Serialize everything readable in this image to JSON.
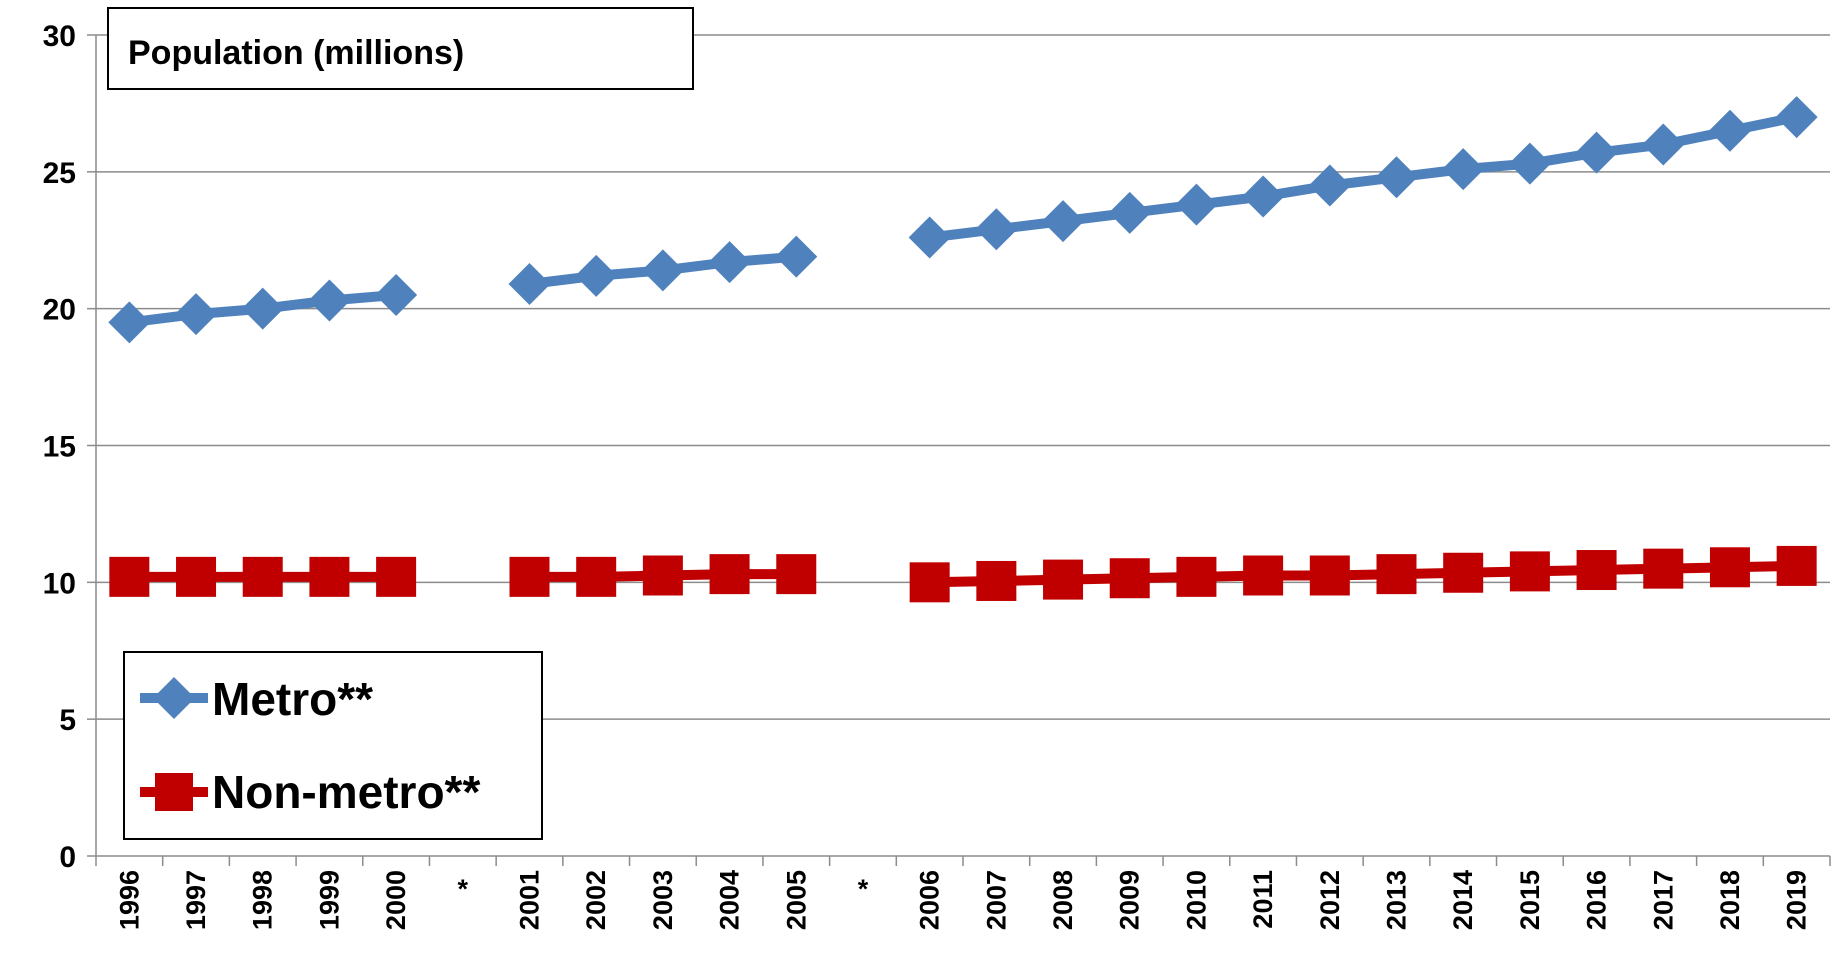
{
  "chart_data": {
    "type": "line",
    "ylabel": "Population (millions)",
    "xlabel": "",
    "ylim": [
      0,
      30
    ],
    "yticks": [
      0,
      5,
      10,
      15,
      20,
      25,
      30
    ],
    "grid": true,
    "legend_position": "bottom-left",
    "categories": [
      "1996",
      "1997",
      "1998",
      "1999",
      "2000",
      "*",
      "2001",
      "2002",
      "2003",
      "2004",
      "2005",
      "*",
      "2006",
      "2007",
      "2008",
      "2009",
      "2010",
      "2011",
      "2012",
      "2013",
      "2014",
      "2015",
      "2016",
      "2017",
      "2018",
      "2019"
    ],
    "series": [
      {
        "name": "Metro**",
        "color": "#4F81BD",
        "marker": "diamond",
        "values": [
          19.5,
          19.8,
          20.0,
          20.3,
          20.5,
          null,
          20.9,
          21.2,
          21.4,
          21.7,
          21.9,
          null,
          22.6,
          22.9,
          23.2,
          23.5,
          23.8,
          24.1,
          24.5,
          24.8,
          25.1,
          25.3,
          25.7,
          26.0,
          26.5,
          27.0
        ]
      },
      {
        "name": "Non-metro**",
        "color": "#C00000",
        "marker": "square",
        "values": [
          10.2,
          10.2,
          10.2,
          10.2,
          10.2,
          null,
          10.2,
          10.2,
          10.25,
          10.3,
          10.3,
          null,
          10.0,
          10.05,
          10.1,
          10.15,
          10.2,
          10.25,
          10.25,
          10.3,
          10.35,
          10.4,
          10.45,
          10.5,
          10.55,
          10.6
        ]
      }
    ]
  }
}
